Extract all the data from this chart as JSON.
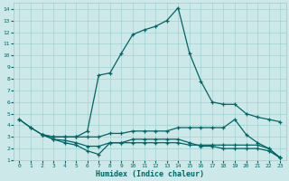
{
  "xlabel": "Humidex (Indice chaleur)",
  "xlim": [
    -0.5,
    23.5
  ],
  "ylim": [
    1,
    14.5
  ],
  "yticks": [
    1,
    2,
    3,
    4,
    5,
    6,
    7,
    8,
    9,
    10,
    11,
    12,
    13,
    14
  ],
  "xticks": [
    0,
    1,
    2,
    3,
    4,
    5,
    6,
    7,
    8,
    9,
    10,
    11,
    12,
    13,
    14,
    15,
    16,
    17,
    18,
    19,
    20,
    21,
    22,
    23
  ],
  "bg_color": "#cce8e8",
  "grid_color": "#99cccc",
  "line_color": "#006666",
  "series": [
    {
      "x": [
        0,
        1,
        2,
        3,
        4,
        5,
        6,
        7,
        8,
        9,
        10,
        11,
        12,
        13,
        14,
        15,
        16,
        17,
        18,
        19,
        20,
        21,
        22,
        23
      ],
      "y": [
        4.5,
        3.8,
        3.2,
        3.0,
        3.0,
        3.0,
        3.5,
        8.3,
        8.5,
        10.2,
        11.8,
        12.2,
        12.5,
        13.0,
        14.1,
        10.2,
        7.8,
        6.0,
        5.8,
        5.8,
        5.0,
        4.7,
        4.5,
        4.3
      ]
    },
    {
      "x": [
        0,
        1,
        2,
        3,
        4,
        5,
        6,
        7,
        8,
        9,
        10,
        11,
        12,
        13,
        14,
        15,
        16,
        17,
        18,
        19,
        20,
        21,
        22,
        23
      ],
      "y": [
        4.5,
        3.8,
        3.2,
        3.0,
        3.0,
        3.0,
        3.0,
        3.0,
        3.3,
        3.3,
        3.5,
        3.5,
        3.5,
        3.5,
        3.8,
        3.8,
        3.8,
        3.8,
        3.8,
        4.5,
        3.2,
        2.5,
        2.0,
        1.2
      ]
    },
    {
      "x": [
        2,
        3,
        4,
        5,
        6,
        7,
        8,
        9,
        10,
        11,
        12,
        13,
        14,
        15,
        16,
        17,
        18,
        19,
        20,
        21,
        22,
        23
      ],
      "y": [
        3.2,
        2.8,
        2.7,
        2.5,
        2.2,
        2.2,
        2.5,
        2.5,
        2.5,
        2.5,
        2.5,
        2.5,
        2.5,
        2.3,
        2.3,
        2.3,
        2.3,
        2.3,
        2.3,
        2.3,
        2.0,
        1.2
      ]
    },
    {
      "x": [
        2,
        3,
        4,
        5,
        6,
        7,
        8,
        9,
        10,
        11,
        12,
        13,
        14,
        15,
        16,
        17,
        18,
        19,
        20,
        21,
        22,
        23
      ],
      "y": [
        3.2,
        2.8,
        2.5,
        2.3,
        1.8,
        1.5,
        2.5,
        2.5,
        2.8,
        2.8,
        2.8,
        2.8,
        2.8,
        2.5,
        2.2,
        2.2,
        2.0,
        2.0,
        2.0,
        2.0,
        1.8,
        1.2
      ]
    }
  ]
}
